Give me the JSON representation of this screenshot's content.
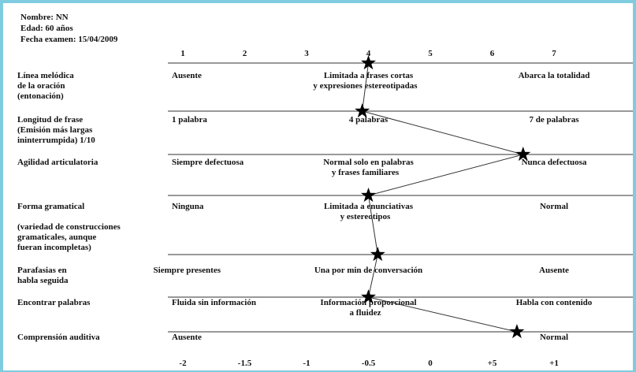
{
  "patient": {
    "name": "Nombre: NN",
    "age": "Edad: 60 años",
    "exam_date": "Fecha examen: 15/04/2009"
  },
  "colors": {
    "frame": "#7fcce0",
    "lines": "#333333",
    "star": "#000000"
  },
  "chart_data": {
    "type": "line",
    "title": "",
    "xlabel": "",
    "ylabel": "",
    "top_ticks": [
      "1",
      "2",
      "3",
      "4",
      "5",
      "6",
      "7"
    ],
    "bottom_ticks": [
      "-2",
      "-1.5",
      "-1",
      "-0.5",
      "0",
      "+5",
      "+1"
    ],
    "xlim": [
      1,
      7
    ],
    "grid": false,
    "rows": [
      {
        "label": [
          "Línea melódica",
          "de la oración",
          "(entonación)"
        ],
        "anchors": [
          {
            "x": 1,
            "lines": [
              "Ausente"
            ],
            "align": "start"
          },
          {
            "x": 4,
            "lines": [
              "Limitada a frases cortas",
              "y expresiones estereotipadas"
            ],
            "align": "middle"
          },
          {
            "x": 7,
            "lines": [
              "Abarca la totalidad"
            ],
            "align": "middle"
          }
        ],
        "rating": 4.0
      },
      {
        "label": [
          "Longitud de frase",
          "(Emisión más largas",
          "ininterrumpida) 1/10"
        ],
        "anchors": [
          {
            "x": 1,
            "lines": [
              "1 palabra"
            ],
            "align": "start"
          },
          {
            "x": 4,
            "lines": [
              "4 palabras"
            ],
            "align": "middle"
          },
          {
            "x": 7,
            "lines": [
              "7 de palabras"
            ],
            "align": "middle"
          }
        ],
        "rating": 3.9
      },
      {
        "label": [
          "Agilidad articulatoria"
        ],
        "anchors": [
          {
            "x": 1,
            "lines": [
              "Siempre defectuosa"
            ],
            "align": "start"
          },
          {
            "x": 4,
            "lines": [
              "Normal solo en palabras",
              "y frases familiares"
            ],
            "align": "middle"
          },
          {
            "x": 7,
            "lines": [
              "Nunca defectuosa"
            ],
            "align": "middle"
          }
        ],
        "rating": 6.5
      },
      {
        "label": [
          "Forma gramatical",
          "",
          "(variedad de construcciones",
          "gramaticales, aunque",
          "fueran incompletas)"
        ],
        "anchors": [
          {
            "x": 1,
            "lines": [
              "Ninguna"
            ],
            "align": "start"
          },
          {
            "x": 4,
            "lines": [
              "Limitada a enunciativas",
              "y estereotipos"
            ],
            "align": "middle"
          },
          {
            "x": 7,
            "lines": [
              "Normal"
            ],
            "align": "middle"
          }
        ],
        "rating": 4.0
      },
      {
        "label": [
          "Parafasias en",
          "habla seguida"
        ],
        "anchors": [
          {
            "x": 1,
            "lines": [
              "Siempre presentes"
            ],
            "align": "end"
          },
          {
            "x": 4,
            "lines": [
              "Una por min de conversación"
            ],
            "align": "middle"
          },
          {
            "x": 7,
            "lines": [
              "Ausente"
            ],
            "align": "middle"
          }
        ],
        "rating": 4.15
      },
      {
        "label": [
          "Encontrar palabras"
        ],
        "anchors": [
          {
            "x": 1,
            "lines": [
              "Fluida sin información"
            ],
            "align": "start"
          },
          {
            "x": 4,
            "lines": [
              "Información proporcional",
              "a fluidez"
            ],
            "align": "middle"
          },
          {
            "x": 7,
            "lines": [
              "Habla con contenido"
            ],
            "align": "middle"
          }
        ],
        "rating": 4.0
      },
      {
        "label": [
          "Comprensión auditiva"
        ],
        "anchors": [
          {
            "x": 1,
            "lines": [
              "Ausente"
            ],
            "align": "start"
          },
          {
            "x": 7,
            "lines": [
              "Normal"
            ],
            "align": "middle"
          }
        ],
        "rating": 6.4
      }
    ]
  }
}
